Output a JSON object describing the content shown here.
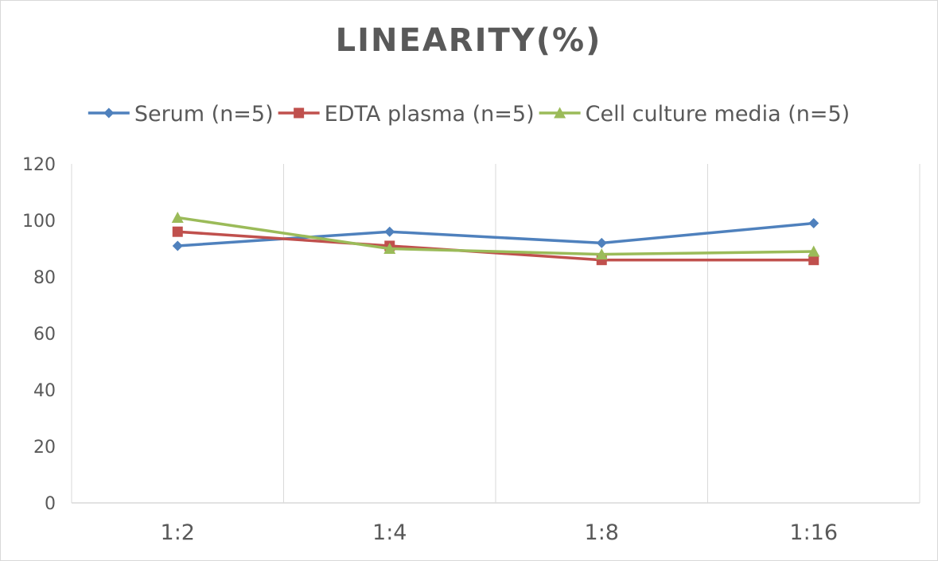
{
  "chart_data": {
    "type": "line",
    "title": "LINEARITY(%)",
    "xlabel": "",
    "ylabel": "",
    "categories": [
      "1:2",
      "1:4",
      "1:8",
      "1:16"
    ],
    "ylim": [
      0,
      120
    ],
    "yticks": [
      0,
      20,
      40,
      60,
      80,
      100,
      120
    ],
    "grid": "vertical",
    "legend": "top",
    "series": [
      {
        "name": "Serum (n=5)",
        "values": [
          91,
          96,
          92,
          99
        ],
        "color": "#4f81bd",
        "marker": "diamond"
      },
      {
        "name": "EDTA plasma (n=5)",
        "values": [
          96,
          91,
          86,
          86
        ],
        "color": "#c0504d",
        "marker": "square"
      },
      {
        "name": "Cell culture media (n=5)",
        "values": [
          101,
          90,
          88,
          89
        ],
        "color": "#9bbb59",
        "marker": "triangle"
      }
    ]
  }
}
